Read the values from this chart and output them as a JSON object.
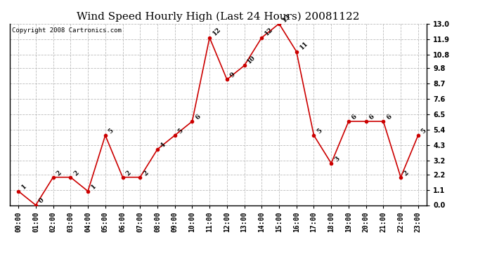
{
  "title": "Wind Speed Hourly High (Last 24 Hours) 20081122",
  "copyright": "Copyright 2008 Cartronics.com",
  "hours": [
    "00:00",
    "01:00",
    "02:00",
    "03:00",
    "04:00",
    "05:00",
    "06:00",
    "07:00",
    "08:00",
    "09:00",
    "10:00",
    "11:00",
    "12:00",
    "13:00",
    "14:00",
    "15:00",
    "16:00",
    "17:00",
    "18:00",
    "19:00",
    "20:00",
    "21:00",
    "22:00",
    "23:00"
  ],
  "values": [
    1,
    0,
    2,
    2,
    1,
    5,
    2,
    2,
    4,
    5,
    6,
    12,
    9,
    10,
    12,
    13,
    11,
    5,
    3,
    6,
    6,
    6,
    2,
    5
  ],
  "line_color": "#cc0000",
  "marker_color": "#cc0000",
  "bg_color": "#ffffff",
  "grid_color": "#bbbbbb",
  "ylim_min": 0.0,
  "ylim_max": 13.0,
  "yticks": [
    0.0,
    1.1,
    2.2,
    3.2,
    4.3,
    5.4,
    6.5,
    7.6,
    8.7,
    9.8,
    10.8,
    11.9,
    13.0
  ],
  "title_fontsize": 11,
  "label_fontsize": 7,
  "copyright_fontsize": 6.5,
  "annot_fontsize": 6.5
}
